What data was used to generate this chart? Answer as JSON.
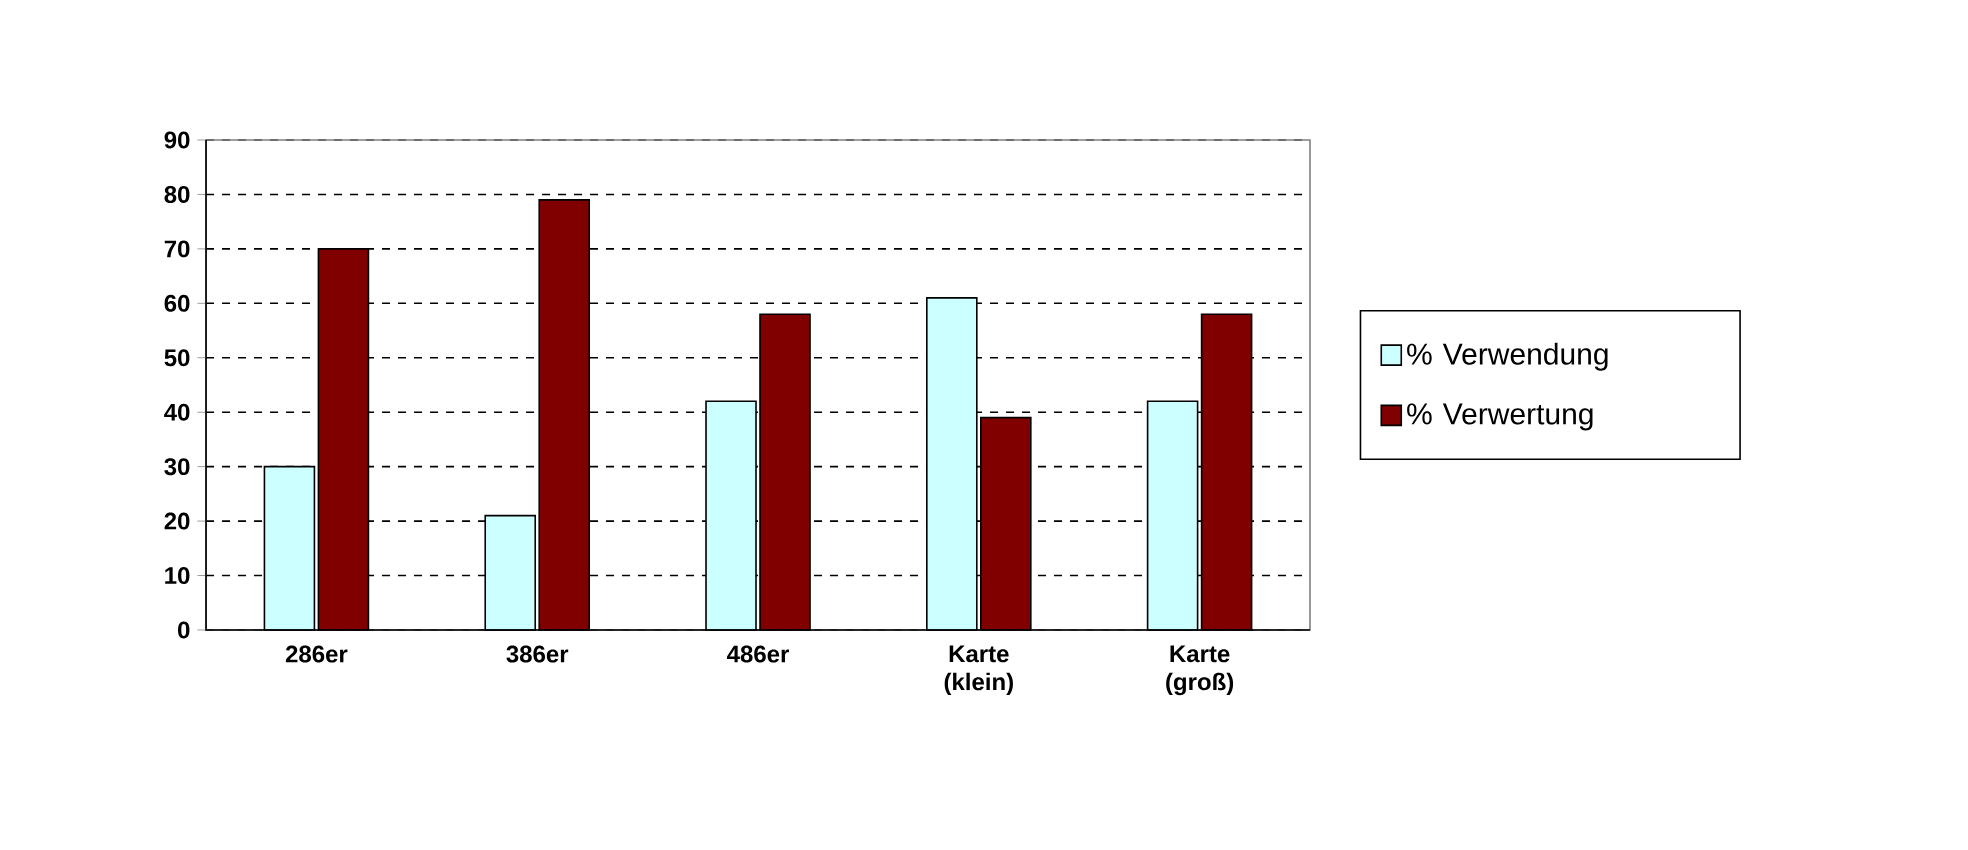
{
  "chart_data": {
    "type": "bar",
    "categories": [
      "286er",
      "386er",
      "486er",
      "Karte (klein)",
      "Karte (groß)"
    ],
    "series": [
      {
        "name": "% Verwendung",
        "color": "#ccffff",
        "values": [
          30,
          21,
          42,
          61,
          42
        ]
      },
      {
        "name": "% Verwertung",
        "color": "#800000",
        "values": [
          70,
          79,
          58,
          39,
          58
        ]
      }
    ],
    "ylim": [
      0,
      90
    ],
    "yticks": [
      0,
      10,
      20,
      30,
      40,
      50,
      60,
      70,
      80,
      90
    ],
    "grid": "y",
    "legend": "right"
  }
}
